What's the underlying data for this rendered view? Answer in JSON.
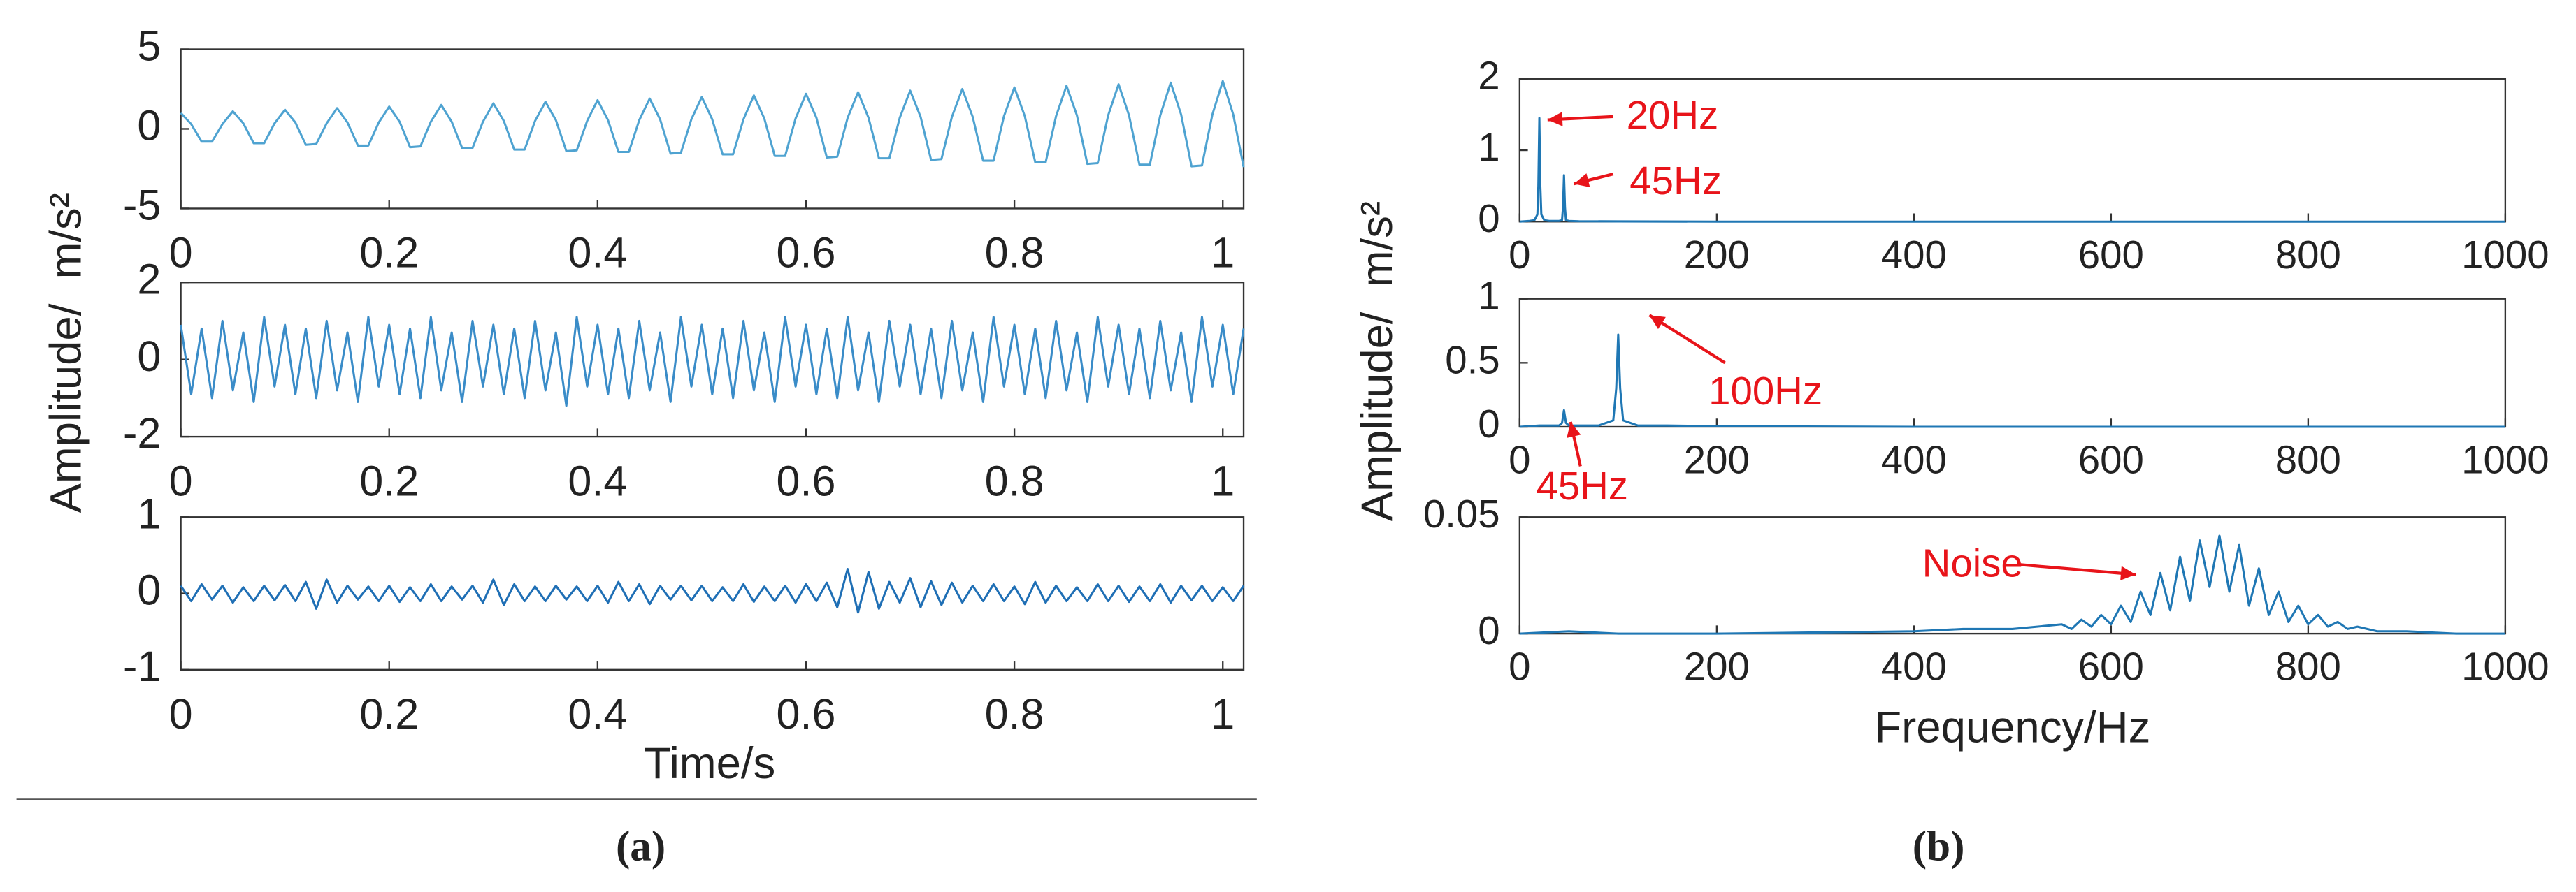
{
  "chart_data": [
    {
      "type": "line",
      "color": "#4fa3d1",
      "x": [
        0,
        0.01,
        0.02,
        0.03,
        0.04,
        0.05,
        0.06,
        0.07,
        0.08,
        0.09,
        0.1,
        0.11,
        0.12,
        0.13,
        0.14,
        0.15,
        0.16,
        0.17,
        0.18,
        0.19,
        0.2,
        0.21,
        0.22,
        0.23,
        0.24,
        0.25,
        0.26,
        0.27,
        0.28,
        0.29,
        0.3,
        0.31,
        0.32,
        0.33,
        0.34,
        0.35,
        0.36,
        0.37,
        0.38,
        0.39,
        0.4,
        0.41,
        0.42,
        0.43,
        0.44,
        0.45,
        0.46,
        0.47,
        0.48,
        0.49,
        0.5,
        0.51,
        0.52,
        0.53,
        0.54,
        0.55,
        0.56,
        0.57,
        0.58,
        0.59,
        0.6,
        0.61,
        0.62,
        0.63,
        0.64,
        0.65,
        0.66,
        0.67,
        0.68,
        0.69,
        0.7,
        0.71,
        0.72,
        0.73,
        0.74,
        0.75,
        0.76,
        0.77,
        0.78,
        0.79,
        0.8,
        0.81,
        0.82,
        0.83,
        0.84,
        0.85,
        0.86,
        0.87,
        0.88,
        0.89,
        0.9,
        0.91,
        0.92,
        0.93,
        0.94,
        0.95,
        0.96,
        0.97,
        0.98,
        0.99,
        1,
        1.01,
        1.02
      ],
      "values": [
        1.0,
        0.3,
        -0.8,
        -0.8,
        0.3,
        1.1,
        0.35,
        -0.9,
        -0.9,
        0.35,
        1.2,
        0.4,
        -1.0,
        -0.95,
        0.35,
        1.3,
        0.4,
        -1.05,
        -1.05,
        0.4,
        1.4,
        0.45,
        -1.15,
        -1.1,
        0.45,
        1.5,
        0.45,
        -1.2,
        -1.2,
        0.45,
        1.6,
        0.5,
        -1.3,
        -1.3,
        0.5,
        1.7,
        0.55,
        -1.4,
        -1.35,
        0.5,
        1.8,
        0.55,
        -1.45,
        -1.45,
        0.55,
        1.9,
        0.6,
        -1.55,
        -1.5,
        0.6,
        2.0,
        0.6,
        -1.6,
        -1.6,
        0.6,
        2.1,
        0.65,
        -1.7,
        -1.7,
        0.65,
        2.2,
        0.7,
        -1.8,
        -1.75,
        0.7,
        2.3,
        0.7,
        -1.85,
        -1.85,
        0.7,
        2.4,
        0.75,
        -1.95,
        -1.9,
        0.75,
        2.5,
        0.75,
        -2.0,
        -2.0,
        0.8,
        2.6,
        0.8,
        -2.1,
        -2.1,
        0.8,
        2.7,
        0.85,
        -2.2,
        -2.15,
        0.85,
        2.8,
        0.85,
        -2.25,
        -2.25,
        0.85,
        2.9,
        0.9,
        -2.35,
        -2.3,
        0.9,
        3.0,
        0.9,
        -2.4
      ],
      "xlim": [
        0,
        1.02
      ],
      "ylim": [
        -5,
        5
      ],
      "xticks": [
        0,
        0.2,
        0.4,
        0.6,
        0.8,
        1
      ],
      "yticks": [
        -5,
        0,
        5
      ]
    },
    {
      "type": "line",
      "color": "#3a8cc8",
      "ylabel": "Amplitude/  m/s²",
      "x": [
        0,
        0.01,
        0.02,
        0.03,
        0.04,
        0.05,
        0.06,
        0.07,
        0.08,
        0.09,
        0.1,
        0.11,
        0.12,
        0.13,
        0.14,
        0.15,
        0.16,
        0.17,
        0.18,
        0.19,
        0.2,
        0.21,
        0.22,
        0.23,
        0.24,
        0.25,
        0.26,
        0.27,
        0.28,
        0.29,
        0.3,
        0.31,
        0.32,
        0.33,
        0.34,
        0.35,
        0.36,
        0.37,
        0.38,
        0.39,
        0.4,
        0.41,
        0.42,
        0.43,
        0.44,
        0.45,
        0.46,
        0.47,
        0.48,
        0.49,
        0.5,
        0.51,
        0.52,
        0.53,
        0.54,
        0.55,
        0.56,
        0.57,
        0.58,
        0.59,
        0.6,
        0.61,
        0.62,
        0.63,
        0.64,
        0.65,
        0.66,
        0.67,
        0.68,
        0.69,
        0.7,
        0.71,
        0.72,
        0.73,
        0.74,
        0.75,
        0.76,
        0.77,
        0.78,
        0.79,
        0.8,
        0.81,
        0.82,
        0.83,
        0.84,
        0.85,
        0.86,
        0.87,
        0.88,
        0.89,
        0.9,
        0.91,
        0.92,
        0.93,
        0.94,
        0.95,
        0.96,
        0.97,
        0.98,
        0.99,
        1,
        1.01,
        1.02
      ],
      "values": [
        0.9,
        -0.9,
        0.8,
        -1.0,
        1.0,
        -0.8,
        0.7,
        -1.1,
        1.1,
        -0.7,
        0.9,
        -0.9,
        0.8,
        -1.0,
        1.0,
        -0.8,
        0.7,
        -1.1,
        1.1,
        -0.7,
        0.9,
        -0.9,
        0.8,
        -1.0,
        1.1,
        -0.8,
        0.7,
        -1.1,
        1.0,
        -0.7,
        0.9,
        -0.9,
        0.8,
        -1.0,
        1.0,
        -0.8,
        0.7,
        -1.2,
        1.1,
        -0.7,
        0.9,
        -0.9,
        0.8,
        -1.0,
        1.0,
        -0.8,
        0.7,
        -1.1,
        1.1,
        -0.7,
        0.9,
        -0.9,
        0.8,
        -1.0,
        1.0,
        -0.8,
        0.7,
        -1.1,
        1.1,
        -0.7,
        0.9,
        -0.9,
        0.8,
        -1.0,
        1.1,
        -0.8,
        0.7,
        -1.1,
        1.0,
        -0.7,
        0.9,
        -0.9,
        0.8,
        -1.0,
        1.0,
        -0.8,
        0.7,
        -1.1,
        1.1,
        -0.7,
        0.9,
        -0.9,
        0.8,
        -1.0,
        1.0,
        -0.8,
        0.7,
        -1.1,
        1.1,
        -0.7,
        0.9,
        -0.9,
        0.8,
        -1.0,
        1.0,
        -0.8,
        0.7,
        -1.1,
        1.1,
        -0.7,
        0.9,
        -0.9,
        0.8
      ],
      "xlim": [
        0,
        1.02
      ],
      "ylim": [
        -2,
        2
      ],
      "xticks": [
        0,
        0.2,
        0.4,
        0.6,
        0.8,
        1
      ],
      "yticks": [
        -2,
        0,
        2
      ]
    },
    {
      "type": "line",
      "color": "#1f6fb5",
      "xlabel": "Time/s",
      "x": [
        0,
        0.01,
        0.02,
        0.03,
        0.04,
        0.05,
        0.06,
        0.07,
        0.08,
        0.09,
        0.1,
        0.11,
        0.12,
        0.13,
        0.14,
        0.15,
        0.16,
        0.17,
        0.18,
        0.19,
        0.2,
        0.21,
        0.22,
        0.23,
        0.24,
        0.25,
        0.26,
        0.27,
        0.28,
        0.29,
        0.3,
        0.31,
        0.32,
        0.33,
        0.34,
        0.35,
        0.36,
        0.37,
        0.38,
        0.39,
        0.4,
        0.41,
        0.42,
        0.43,
        0.44,
        0.45,
        0.46,
        0.47,
        0.48,
        0.49,
        0.5,
        0.51,
        0.52,
        0.53,
        0.54,
        0.55,
        0.56,
        0.57,
        0.58,
        0.59,
        0.6,
        0.61,
        0.62,
        0.63,
        0.64,
        0.65,
        0.66,
        0.67,
        0.68,
        0.69,
        0.7,
        0.71,
        0.72,
        0.73,
        0.74,
        0.75,
        0.76,
        0.77,
        0.78,
        0.79,
        0.8,
        0.81,
        0.82,
        0.83,
        0.84,
        0.85,
        0.86,
        0.87,
        0.88,
        0.89,
        0.9,
        0.91,
        0.92,
        0.93,
        0.94,
        0.95,
        0.96,
        0.97,
        0.98,
        0.99,
        1,
        1.01,
        1.02
      ],
      "values": [
        0.1,
        -0.1,
        0.12,
        -0.08,
        0.1,
        -0.12,
        0.08,
        -0.1,
        0.1,
        -0.09,
        0.11,
        -0.1,
        0.15,
        -0.2,
        0.18,
        -0.12,
        0.1,
        -0.08,
        0.09,
        -0.1,
        0.1,
        -0.11,
        0.08,
        -0.1,
        0.12,
        -0.1,
        0.09,
        -0.08,
        0.1,
        -0.12,
        0.18,
        -0.15,
        0.12,
        -0.1,
        0.09,
        -0.1,
        0.1,
        -0.08,
        0.09,
        -0.1,
        0.1,
        -0.12,
        0.15,
        -0.1,
        0.12,
        -0.14,
        0.1,
        -0.08,
        0.1,
        -0.09,
        0.1,
        -0.1,
        0.08,
        -0.1,
        0.12,
        -0.11,
        0.09,
        -0.1,
        0.1,
        -0.12,
        0.12,
        -0.1,
        0.14,
        -0.18,
        0.32,
        -0.25,
        0.28,
        -0.2,
        0.15,
        -0.12,
        0.2,
        -0.18,
        0.16,
        -0.15,
        0.14,
        -0.12,
        0.1,
        -0.1,
        0.12,
        -0.1,
        0.09,
        -0.14,
        0.15,
        -0.12,
        0.1,
        -0.1,
        0.08,
        -0.1,
        0.12,
        -0.1,
        0.1,
        -0.11,
        0.09,
        -0.1,
        0.12,
        -0.12,
        0.1,
        -0.09,
        0.1,
        -0.1,
        0.08,
        -0.1,
        0.1
      ],
      "xlim": [
        0,
        1.02
      ],
      "ylim": [
        -1,
        1
      ],
      "xticks": [
        0,
        0.2,
        0.4,
        0.6,
        0.8,
        1
      ],
      "yticks": [
        -1,
        0,
        1
      ]
    },
    {
      "type": "line",
      "color": "#1f77b4",
      "annotations": [
        "20Hz",
        "45Hz"
      ],
      "x": [
        0,
        10,
        15,
        18,
        19,
        20,
        21,
        22,
        25,
        30,
        40,
        43,
        44,
        45,
        46,
        47,
        50,
        60,
        100,
        200,
        300,
        400,
        500,
        600,
        700,
        800,
        900,
        1000
      ],
      "values": [
        0,
        0.01,
        0.02,
        0.1,
        0.5,
        1.45,
        0.5,
        0.1,
        0.02,
        0.01,
        0.01,
        0.02,
        0.2,
        0.65,
        0.2,
        0.02,
        0.01,
        0.005,
        0.003,
        0,
        0,
        0,
        0,
        0,
        0,
        0,
        0,
        0
      ],
      "xlim": [
        0,
        1000
      ],
      "ylim": [
        0,
        2
      ],
      "xticks": [
        0,
        200,
        400,
        600,
        800,
        1000
      ],
      "yticks": [
        0,
        1,
        2
      ]
    },
    {
      "type": "line",
      "color": "#1f77b4",
      "annotations": [
        "100Hz",
        "45Hz"
      ],
      "ylabel": "Amplitude/  m/s²",
      "x": [
        0,
        20,
        40,
        43,
        45,
        47,
        50,
        80,
        95,
        98,
        100,
        102,
        105,
        120,
        150,
        200,
        400,
        600,
        800,
        1000
      ],
      "values": [
        0,
        0.01,
        0.01,
        0.03,
        0.13,
        0.03,
        0.01,
        0.01,
        0.05,
        0.3,
        0.72,
        0.3,
        0.05,
        0.01,
        0.01,
        0.005,
        0,
        0,
        0,
        0
      ],
      "xlim": [
        0,
        1000
      ],
      "ylim": [
        0,
        1
      ],
      "xticks": [
        0,
        200,
        400,
        600,
        800,
        1000
      ],
      "yticks": [
        0,
        0.5,
        1
      ]
    },
    {
      "type": "line",
      "color": "#1f77b4",
      "annotations": [
        "Noise"
      ],
      "xlabel": "Frequency/Hz",
      "x": [
        0,
        50,
        100,
        200,
        300,
        400,
        450,
        500,
        550,
        560,
        570,
        580,
        590,
        600,
        610,
        620,
        630,
        640,
        650,
        660,
        670,
        680,
        690,
        700,
        710,
        720,
        730,
        740,
        750,
        760,
        770,
        780,
        790,
        800,
        810,
        820,
        830,
        840,
        850,
        870,
        900,
        950,
        1000
      ],
      "values": [
        0,
        0.001,
        0,
        0,
        0.0005,
        0.001,
        0.002,
        0.002,
        0.004,
        0.002,
        0.006,
        0.003,
        0.008,
        0.004,
        0.012,
        0.005,
        0.018,
        0.008,
        0.026,
        0.01,
        0.033,
        0.014,
        0.04,
        0.02,
        0.042,
        0.018,
        0.038,
        0.012,
        0.028,
        0.008,
        0.018,
        0.005,
        0.012,
        0.004,
        0.008,
        0.003,
        0.005,
        0.002,
        0.003,
        0.001,
        0.001,
        0,
        0
      ],
      "xlim": [
        0,
        1000
      ],
      "ylim": [
        0,
        0.05
      ],
      "xticks": [
        0,
        200,
        400,
        600,
        800,
        1000
      ],
      "yticks": [
        0,
        0.05
      ]
    }
  ],
  "captions": [
    "(a)",
    "(b)"
  ]
}
